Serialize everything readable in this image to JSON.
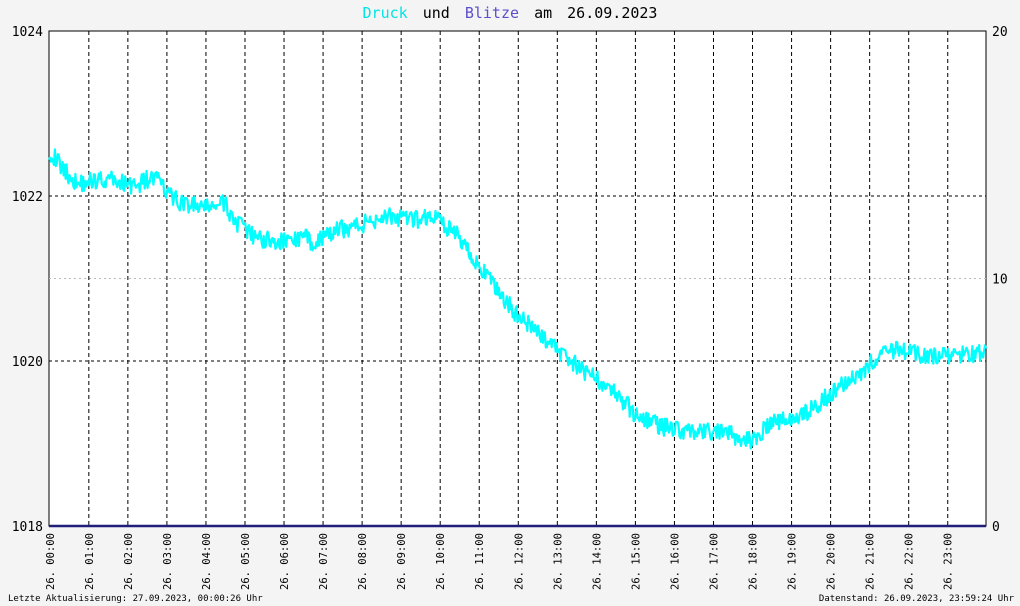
{
  "title": {
    "word_druck": "Druck",
    "word_und": "und",
    "word_blitze": "Blitze",
    "word_am": "am",
    "date": "26.09.2023",
    "druck_color": "#00e5e5",
    "blitze_color": "#5a4fcf"
  },
  "footer": {
    "left": "Letzte Aktualisierung: 27.09.2023, 00:00:26 Uhr",
    "right": "Datenstand: 26.09.2023, 23:59:24 Uhr"
  },
  "chart_data": {
    "type": "line",
    "title": "Druck und Blitze am 26.09.2023",
    "x_unit": "hour",
    "xlim": [
      0,
      24
    ],
    "x_tick_labels": [
      "26. 00:00",
      "26. 01:00",
      "26. 02:00",
      "26. 03:00",
      "26. 04:00",
      "26. 05:00",
      "26. 06:00",
      "26. 07:00",
      "26. 08:00",
      "26. 09:00",
      "26. 10:00",
      "26. 11:00",
      "26. 12:00",
      "26. 13:00",
      "26. 14:00",
      "26. 15:00",
      "26. 16:00",
      "26. 17:00",
      "26. 18:00",
      "26. 19:00",
      "26. 20:00",
      "26. 21:00",
      "26. 22:00",
      "26. 23:00"
    ],
    "y_left": {
      "ylim": [
        1018,
        1024
      ],
      "ticks": [
        1018,
        1020,
        1022,
        1024
      ]
    },
    "y_right": {
      "ylim": [
        0,
        20
      ],
      "ticks": [
        0,
        10,
        20
      ]
    },
    "grid": true,
    "series": [
      {
        "name": "Druck",
        "axis": "left",
        "color": "#00ffff",
        "x": [
          0.0,
          0.25,
          0.5,
          0.75,
          1.0,
          1.25,
          1.5,
          1.75,
          2.0,
          2.25,
          2.5,
          2.75,
          3.0,
          3.25,
          3.5,
          3.75,
          4.0,
          4.25,
          4.5,
          4.75,
          5.0,
          5.25,
          5.5,
          5.75,
          6.0,
          6.25,
          6.5,
          6.75,
          7.0,
          7.25,
          7.5,
          7.75,
          8.0,
          8.25,
          8.5,
          8.75,
          9.0,
          9.25,
          9.5,
          9.75,
          10.0,
          10.25,
          10.5,
          10.75,
          11.0,
          11.25,
          11.5,
          11.75,
          12.0,
          12.25,
          12.5,
          12.75,
          13.0,
          13.25,
          13.5,
          13.75,
          14.0,
          14.25,
          14.5,
          14.75,
          15.0,
          15.25,
          15.5,
          15.75,
          16.0,
          16.25,
          16.5,
          16.75,
          17.0,
          17.25,
          17.5,
          17.75,
          18.0,
          18.25,
          18.5,
          18.75,
          19.0,
          19.25,
          19.5,
          19.75,
          20.0,
          20.25,
          20.5,
          20.75,
          21.0,
          21.25,
          21.5,
          21.75,
          22.0,
          22.25,
          22.5,
          22.75,
          23.0,
          23.25,
          23.5,
          23.75,
          24.0
        ],
        "values": [
          1022.55,
          1022.4,
          1022.25,
          1022.15,
          1022.18,
          1022.2,
          1022.2,
          1022.18,
          1022.15,
          1022.12,
          1022.2,
          1022.22,
          1022.05,
          1021.95,
          1021.9,
          1021.88,
          1021.85,
          1021.9,
          1021.9,
          1021.7,
          1021.6,
          1021.5,
          1021.48,
          1021.45,
          1021.45,
          1021.47,
          1021.5,
          1021.45,
          1021.48,
          1021.55,
          1021.6,
          1021.62,
          1021.65,
          1021.7,
          1021.75,
          1021.75,
          1021.72,
          1021.7,
          1021.72,
          1021.75,
          1021.72,
          1021.6,
          1021.5,
          1021.35,
          1021.15,
          1021.0,
          1020.85,
          1020.7,
          1020.55,
          1020.45,
          1020.35,
          1020.25,
          1020.15,
          1020.05,
          1019.95,
          1019.85,
          1019.8,
          1019.72,
          1019.6,
          1019.5,
          1019.35,
          1019.3,
          1019.25,
          1019.2,
          1019.2,
          1019.15,
          1019.15,
          1019.12,
          1019.15,
          1019.12,
          1019.1,
          1019.05,
          1019.05,
          1019.15,
          1019.25,
          1019.28,
          1019.3,
          1019.35,
          1019.4,
          1019.5,
          1019.6,
          1019.7,
          1019.8,
          1019.85,
          1019.95,
          1020.05,
          1020.1,
          1020.15,
          1020.1,
          1020.08,
          1020.05,
          1020.05,
          1020.05,
          1020.05,
          1020.1,
          1020.08,
          1020.15
        ]
      },
      {
        "name": "Blitze",
        "axis": "right",
        "color": "#1f1f7a",
        "x": [
          0,
          24
        ],
        "values": [
          0,
          0
        ]
      }
    ]
  }
}
